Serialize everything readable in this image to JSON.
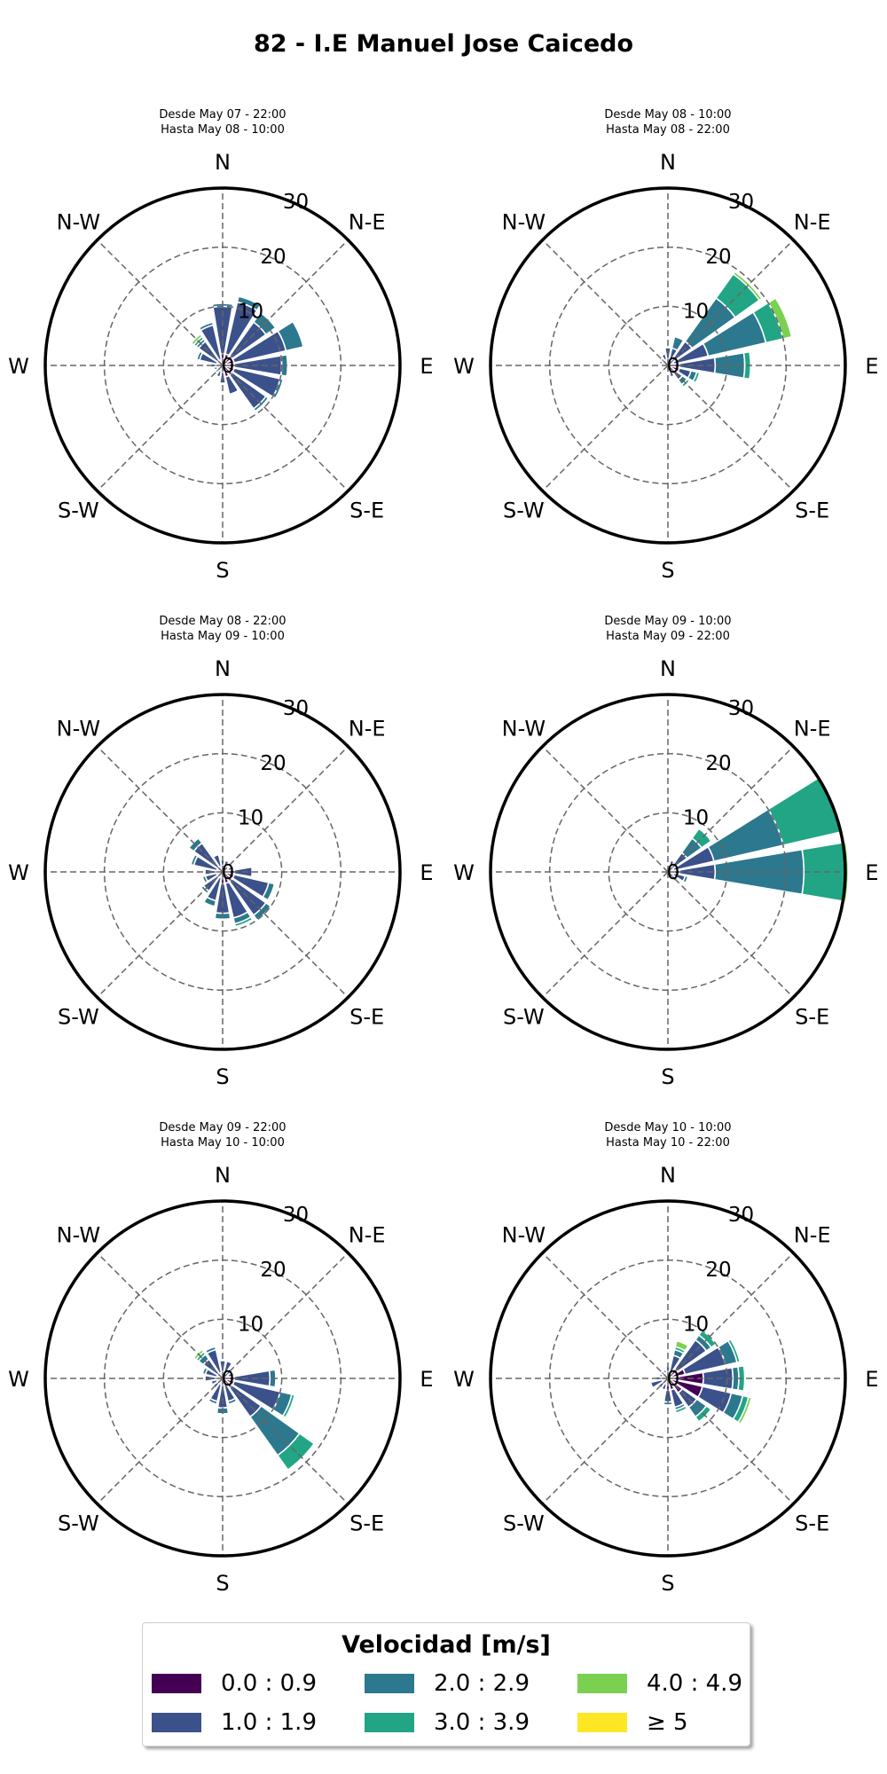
{
  "title": "82 - I.E Manuel Jose Caicedo",
  "chart_data": {
    "type": "windrose",
    "directions": [
      "N",
      "NNE",
      "NE",
      "ENE",
      "E",
      "ESE",
      "SE",
      "SSE",
      "S",
      "SSW",
      "SW",
      "WSW",
      "W",
      "WNW",
      "NW",
      "NNW"
    ],
    "direction_labels": [
      "N",
      "N-E",
      "E",
      "S-E",
      "S",
      "S-W",
      "W",
      "N-W"
    ],
    "r_ticks": [
      "0",
      "10",
      "20",
      "30"
    ],
    "rmax": 30,
    "speed_bins": [
      {
        "label": "0.0 : 0.9",
        "color": "#440154"
      },
      {
        "label": "1.0 : 1.9",
        "color": "#3b518b"
      },
      {
        "label": "2.0 : 2.9",
        "color": "#2c788e"
      },
      {
        "label": "3.0 : 3.9",
        "color": "#21a585"
      },
      {
        "label": "4.0 : 4.9",
        "color": "#7ad151"
      },
      {
        "label": "≥ 5",
        "color": "#fde725"
      }
    ],
    "legend_title": "Velocidad [m/s]",
    "panels": [
      {
        "line1": "Desde May 07 - 22:00",
        "line2": "Hasta May 08 - 10:00",
        "values": [
          [
            2,
            8,
            0.5,
            0,
            0,
            0
          ],
          [
            2,
            9,
            1,
            0,
            0,
            0
          ],
          [
            2,
            7,
            2,
            0,
            0,
            0
          ],
          [
            2,
            9,
            3,
            0,
            0,
            0
          ],
          [
            2,
            8,
            1,
            0,
            0,
            0
          ],
          [
            2,
            8,
            0.5,
            0,
            0,
            0
          ],
          [
            2,
            7,
            0.5,
            0,
            0,
            0
          ],
          [
            2,
            3,
            0,
            0,
            0,
            0
          ],
          [
            1,
            2,
            0,
            0,
            0,
            0
          ],
          [
            1,
            1,
            0,
            0,
            0,
            0
          ],
          [
            1,
            0.5,
            0,
            0,
            0,
            0
          ],
          [
            1,
            0.5,
            0,
            0,
            0,
            0
          ],
          [
            1,
            1,
            0,
            0,
            0,
            0
          ],
          [
            1,
            3,
            0.5,
            0,
            0,
            0
          ],
          [
            1,
            4,
            0.5,
            0.5,
            0.5,
            0
          ],
          [
            1,
            6,
            0.5,
            0,
            0,
            0
          ]
        ]
      },
      {
        "line1": "Desde May 08 - 10:00",
        "line2": "Hasta May 08 - 22:00",
        "values": [
          [
            1,
            2,
            0,
            0,
            0,
            0
          ],
          [
            1,
            2,
            2,
            0,
            0,
            0
          ],
          [
            1,
            4,
            9,
            5,
            0.5,
            0
          ],
          [
            1,
            6,
            10,
            3,
            1.5,
            0
          ],
          [
            2,
            6,
            5,
            1,
            0,
            0
          ],
          [
            2,
            2,
            1,
            0.5,
            0,
            0
          ],
          [
            1,
            2,
            1,
            0.5,
            0,
            0
          ],
          [
            1,
            1,
            0,
            0,
            0,
            0
          ],
          [
            1,
            0,
            0,
            0,
            0,
            0
          ],
          [
            0.5,
            0,
            0,
            0,
            0,
            0
          ],
          [
            0.5,
            0,
            0,
            0,
            0,
            0
          ],
          [
            0.5,
            0,
            0,
            0,
            0,
            0
          ],
          [
            1,
            0,
            0,
            0,
            0,
            0
          ],
          [
            1,
            0.5,
            0,
            0,
            0,
            0
          ],
          [
            1,
            0.5,
            0,
            0,
            0,
            0
          ],
          [
            1,
            1,
            0,
            0,
            0,
            0
          ]
        ]
      },
      {
        "line1": "Desde May 08 - 22:00",
        "line2": "Hasta May 09 - 10:00",
        "values": [
          [
            1,
            1,
            0,
            0,
            0,
            0
          ],
          [
            1,
            1,
            0,
            0,
            0,
            0
          ],
          [
            1,
            0,
            0,
            0,
            0,
            0
          ],
          [
            1,
            1,
            0,
            0,
            0,
            0
          ],
          [
            2,
            3,
            0,
            0,
            0,
            0
          ],
          [
            2,
            6,
            1,
            0,
            0,
            0
          ],
          [
            2,
            7,
            1,
            0,
            0,
            0
          ],
          [
            2,
            6,
            1,
            0.5,
            0,
            0
          ],
          [
            2,
            5,
            1,
            0,
            0,
            0
          ],
          [
            1,
            4,
            1,
            0,
            0,
            0
          ],
          [
            1,
            3,
            0.5,
            0,
            0,
            0
          ],
          [
            1,
            2,
            0.5,
            0,
            0,
            0
          ],
          [
            1,
            2,
            0,
            0,
            0,
            0
          ],
          [
            1,
            4,
            0.5,
            0,
            0,
            0
          ],
          [
            1,
            5,
            1,
            0,
            0,
            0
          ],
          [
            1,
            2,
            0,
            0,
            0,
            0
          ]
        ]
      },
      {
        "line1": "Desde May 09 - 10:00",
        "line2": "Hasta May 09 - 22:00",
        "values": [
          [
            0.5,
            0,
            0,
            0,
            0,
            0
          ],
          [
            1,
            1,
            0,
            0,
            0,
            0
          ],
          [
            1,
            3,
            3,
            2,
            0,
            0
          ],
          [
            1,
            7,
            12,
            10,
            0,
            0
          ],
          [
            2,
            6,
            15,
            7,
            0.5,
            0
          ],
          [
            1,
            2,
            0.5,
            0,
            0,
            0
          ],
          [
            1,
            1,
            0,
            0,
            0,
            0
          ],
          [
            0.5,
            0,
            0,
            0,
            0,
            0
          ],
          [
            0.5,
            0,
            0,
            0,
            0,
            0
          ],
          [
            0.5,
            0,
            0,
            0,
            0,
            0
          ],
          [
            0.5,
            0,
            0,
            0,
            0,
            0
          ],
          [
            0.5,
            0,
            0,
            0,
            0,
            0
          ],
          [
            0.5,
            0,
            0,
            0,
            0,
            0
          ],
          [
            0.5,
            0,
            0,
            0,
            0,
            0
          ],
          [
            0.5,
            0,
            0,
            0,
            0,
            0
          ],
          [
            0.5,
            0,
            0,
            0,
            0,
            0
          ]
        ]
      },
      {
        "line1": "Desde May 09 - 22:00",
        "line2": "Hasta May 10 - 10:00",
        "values": [
          [
            1,
            2,
            0,
            0,
            0,
            0
          ],
          [
            1,
            2,
            0,
            0,
            0,
            0
          ],
          [
            1,
            1,
            0,
            0,
            0,
            0
          ],
          [
            1,
            1,
            0,
            0,
            0,
            0
          ],
          [
            2,
            6,
            1,
            0,
            0,
            0
          ],
          [
            2,
            8,
            2,
            0.5,
            0,
            0
          ],
          [
            2,
            6,
            8,
            3,
            0,
            0
          ],
          [
            1,
            3,
            0.5,
            0,
            0,
            0
          ],
          [
            1,
            4,
            1,
            0,
            0,
            0
          ],
          [
            1,
            3,
            0.5,
            0,
            0,
            0
          ],
          [
            1,
            1,
            0,
            0,
            0,
            0
          ],
          [
            1,
            1,
            0,
            0,
            0,
            0
          ],
          [
            1,
            2,
            0,
            0,
            0,
            0
          ],
          [
            1,
            2,
            0.5,
            0,
            0,
            0
          ],
          [
            1,
            3,
            1,
            0.5,
            0.5,
            0
          ],
          [
            1,
            4,
            0.5,
            0,
            0,
            0
          ]
        ]
      },
      {
        "line1": "Desde May 10 - 10:00",
        "line2": "Hasta May 10 - 22:00",
        "values": [
          [
            1,
            1,
            0,
            0,
            0,
            0
          ],
          [
            1,
            3,
            1,
            0.5,
            1,
            0
          ],
          [
            2,
            6,
            1,
            1,
            0,
            0
          ],
          [
            3,
            7,
            2,
            0.5,
            0,
            0
          ],
          [
            6,
            5,
            1,
            1,
            0,
            0
          ],
          [
            6,
            5,
            2,
            1,
            0.5,
            0
          ],
          [
            3,
            3,
            2,
            1,
            0,
            0
          ],
          [
            2,
            3,
            0.5,
            0.5,
            0,
            0
          ],
          [
            2,
            2,
            0.5,
            0,
            0,
            0
          ],
          [
            1,
            1,
            0,
            0,
            0,
            0
          ],
          [
            1,
            1,
            0,
            0,
            0,
            0
          ],
          [
            1,
            2,
            0,
            0,
            0,
            0
          ],
          [
            1,
            1,
            0,
            0,
            0,
            0
          ],
          [
            1,
            0.5,
            0,
            0,
            0,
            0
          ],
          [
            1,
            0.5,
            0,
            0,
            0,
            0
          ],
          [
            1,
            0.5,
            0,
            0,
            0,
            0
          ]
        ]
      }
    ]
  }
}
